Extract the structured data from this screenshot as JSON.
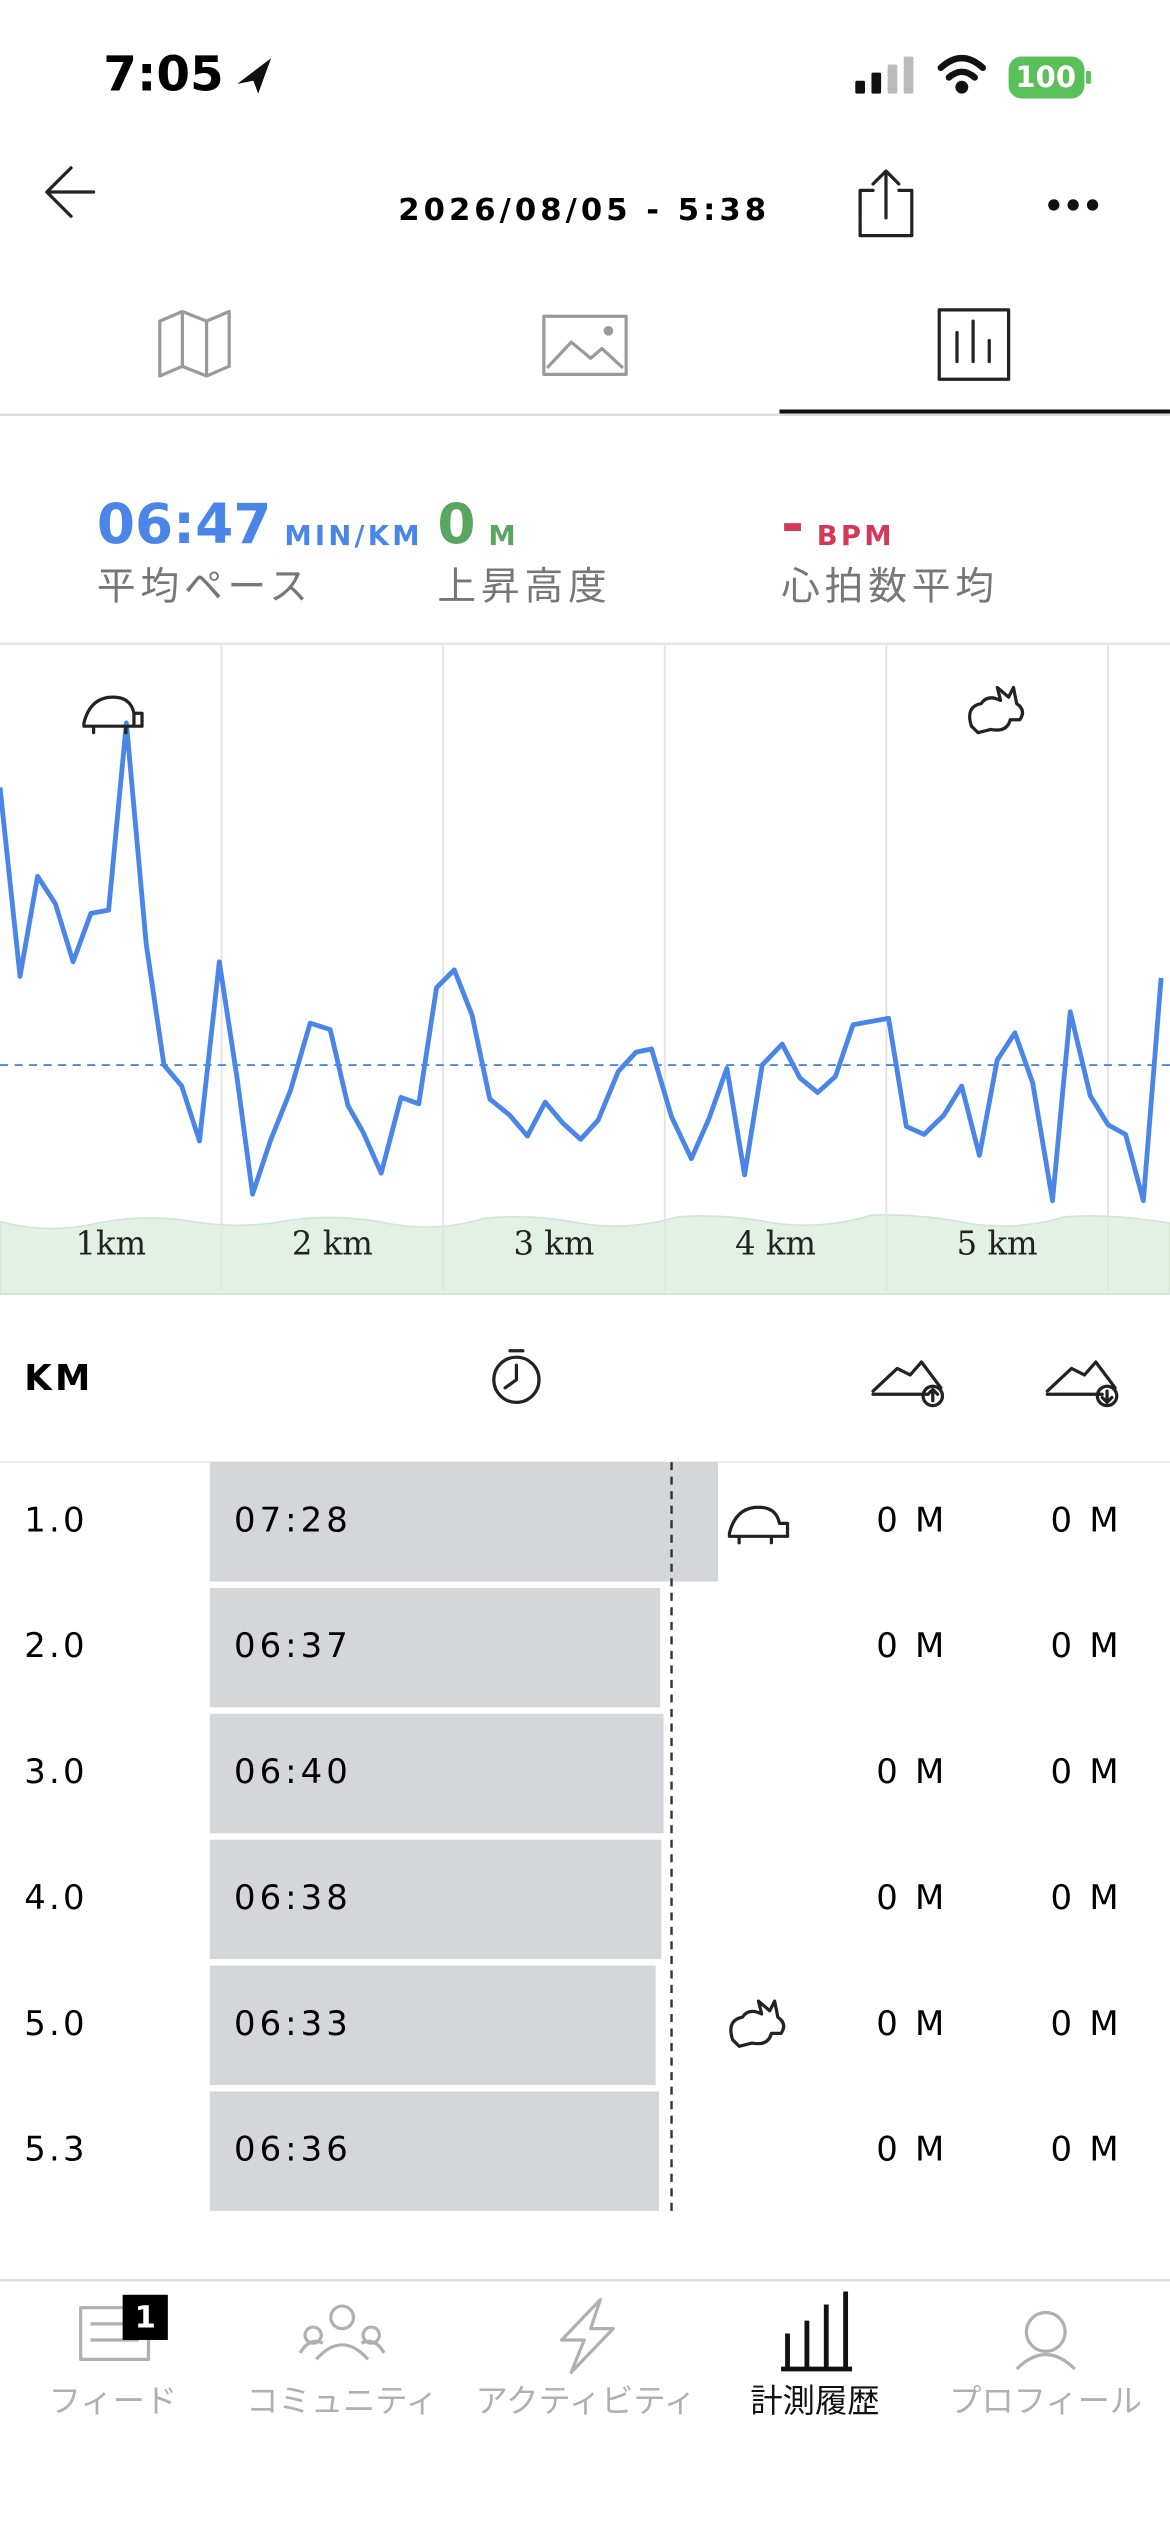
{
  "status_bar": {
    "time": "7:05",
    "battery": "100"
  },
  "header": {
    "title": "2026/08/05 - 5:38"
  },
  "stats": [
    {
      "value": {
        "value": 407,
        "label": "06:47"
      },
      "unit": "MIN/KM",
      "label": "平均ペース",
      "color": "#4a86e8"
    },
    {
      "value": "0",
      "unit": "M",
      "label": "上昇高度",
      "color": "#5aa660"
    },
    {
      "value": "-",
      "unit": "BPM",
      "label": "心拍数平均",
      "color": "#d6385a"
    }
  ],
  "chart_data": {
    "type": "line",
    "x": [
      0,
      0.09,
      0.17,
      0.25,
      0.33,
      0.41,
      0.49,
      0.57,
      0.66,
      0.74,
      0.82,
      0.9,
      0.99,
      1.07,
      1.14,
      1.22,
      1.31,
      1.4,
      1.49,
      1.57,
      1.64,
      1.72,
      1.81,
      1.89,
      1.97,
      2.05,
      2.13,
      2.21,
      2.3,
      2.38,
      2.46,
      2.54,
      2.62,
      2.7,
      2.79,
      2.87,
      2.94,
      3.03,
      3.12,
      3.2,
      3.28,
      3.36,
      3.44,
      3.53,
      3.61,
      3.69,
      3.77,
      3.85,
      4.01,
      4.09,
      4.17,
      4.26,
      4.34,
      4.42,
      4.5,
      4.58,
      4.66,
      4.75,
      4.83,
      4.92,
      5.0,
      5.08,
      5.16,
      5.24
    ],
    "series": [
      {
        "color": "#4a86e8",
        "values": [
          8.5,
          7.33,
          7.95,
          7.78,
          7.42,
          7.72,
          7.74,
          8.9,
          7.53,
          6.78,
          6.65,
          6.31,
          7.42,
          6.7,
          5.98,
          6.31,
          6.62,
          7.04,
          7.0,
          6.53,
          6.36,
          6.11,
          6.58,
          6.54,
          7.26,
          7.37,
          7.09,
          6.57,
          6.47,
          6.34,
          6.55,
          6.42,
          6.32,
          6.44,
          6.74,
          6.86,
          6.88,
          6.46,
          6.2,
          6.45,
          6.76,
          6.1,
          6.78,
          6.91,
          6.7,
          6.61,
          6.71,
          7.03,
          7.07,
          6.4,
          6.35,
          6.47,
          6.65,
          6.22,
          6.81,
          6.98,
          6.67,
          5.94,
          7.11,
          6.59,
          6.41,
          6.35,
          5.94,
          7.32
        ]
      }
    ],
    "average": 6.78,
    "xlim": [
      0,
      5.28
    ],
    "ylim": [
      5.38,
      9.38
    ],
    "xticks": [
      {
        "value": 1,
        "label": "1km"
      },
      {
        "value": 2,
        "label": "2 km"
      },
      {
        "value": 3,
        "label": "3 km"
      },
      {
        "value": 4,
        "label": "4 km"
      },
      {
        "value": 5,
        "label": "5 km"
      }
    ],
    "grid": true
  },
  "splits": {
    "header": "KM",
    "bar_color": "#d4d6d9",
    "rows": [
      {
        "km": "1.0",
        "pace": {
          "value": 448,
          "label": "07:28"
        },
        "gain": "0 M",
        "loss": "0 M"
      },
      {
        "km": "2.0",
        "pace": {
          "value": 397,
          "label": "06:37"
        },
        "gain": "0 M",
        "loss": "0 M"
      },
      {
        "km": "3.0",
        "pace": {
          "value": 400,
          "label": "06:40"
        },
        "gain": "0 M",
        "loss": "0 M"
      },
      {
        "km": "4.0",
        "pace": {
          "value": 398,
          "label": "06:38"
        },
        "gain": "0 M",
        "loss": "0 M"
      },
      {
        "km": "5.0",
        "pace": {
          "value": 393,
          "label": "06:33"
        },
        "gain": "0 M",
        "loss": "0 M"
      },
      {
        "km": "5.3",
        "pace": {
          "value": 396,
          "label": "06:36"
        },
        "gain": "0 M",
        "loss": "0 M"
      }
    ]
  },
  "tab_bar": {
    "active": 3,
    "items": [
      {
        "label": "フィード",
        "badge": "1"
      },
      {
        "label": "コミュニティ"
      },
      {
        "label": "アクティビティ"
      },
      {
        "label": "計測履歴"
      },
      {
        "label": "プロフィール"
      }
    ]
  }
}
